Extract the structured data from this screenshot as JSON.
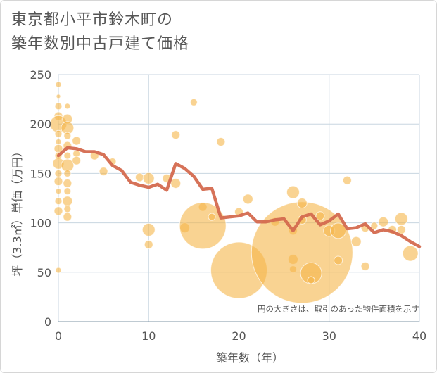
{
  "chart_data": {
    "type": "scatter",
    "title_line1": "東京都小平市鈴木町の",
    "title_line2": "築年数別中古戸建て価格",
    "xlabel": "築年数（年）",
    "ylabel": "坪（3.3㎡）単価（万円）",
    "xlim": [
      0,
      40
    ],
    "ylim": [
      0,
      250
    ],
    "xticks": [
      "0",
      "10",
      "20",
      "30",
      "40"
    ],
    "yticks": [
      "0",
      "50",
      "100",
      "150",
      "200",
      "250"
    ],
    "note": "円の大きさは、取引のあった物件面積を示す",
    "colors": {
      "bubble": "#f5b54a",
      "line": "#d46a4f",
      "grid": "#c8d6e0"
    },
    "average_line": {
      "x": [
        0,
        1,
        2,
        3,
        4,
        5,
        6,
        7,
        8,
        9,
        10,
        11,
        12,
        13,
        14,
        15,
        16,
        17,
        18,
        19,
        20,
        21,
        22,
        23,
        24,
        25,
        26,
        27,
        28,
        29,
        30,
        31,
        32,
        33,
        34,
        35,
        36,
        37,
        38,
        39,
        40
      ],
      "y": [
        168,
        176,
        175,
        172,
        172,
        169,
        158,
        153,
        141,
        138,
        136,
        139,
        133,
        160,
        155,
        147,
        134,
        135,
        105,
        106,
        107,
        110,
        101,
        101,
        103,
        104,
        92,
        106,
        109,
        98,
        102,
        109,
        94,
        95,
        99,
        90,
        93,
        91,
        87,
        81,
        76
      ]
    },
    "bubbles": [
      {
        "x": 0,
        "y": 240,
        "s": 4
      },
      {
        "x": 0,
        "y": 228,
        "s": 3
      },
      {
        "x": 0,
        "y": 218,
        "s": 5
      },
      {
        "x": 0,
        "y": 208,
        "s": 6
      },
      {
        "x": 0,
        "y": 200,
        "s": 12
      },
      {
        "x": 0,
        "y": 190,
        "s": 5
      },
      {
        "x": 0,
        "y": 182,
        "s": 4
      },
      {
        "x": 0,
        "y": 175,
        "s": 6
      },
      {
        "x": 0,
        "y": 168,
        "s": 5
      },
      {
        "x": 0,
        "y": 160,
        "s": 8
      },
      {
        "x": 0,
        "y": 150,
        "s": 5
      },
      {
        "x": 0,
        "y": 142,
        "s": 6
      },
      {
        "x": 0,
        "y": 132,
        "s": 4
      },
      {
        "x": 0,
        "y": 122,
        "s": 5
      },
      {
        "x": 0,
        "y": 112,
        "s": 6
      },
      {
        "x": 0,
        "y": 52,
        "s": 4
      },
      {
        "x": 1,
        "y": 218,
        "s": 4
      },
      {
        "x": 1,
        "y": 205,
        "s": 7
      },
      {
        "x": 1,
        "y": 196,
        "s": 9
      },
      {
        "x": 1,
        "y": 188,
        "s": 5
      },
      {
        "x": 1,
        "y": 178,
        "s": 6
      },
      {
        "x": 1,
        "y": 168,
        "s": 5
      },
      {
        "x": 1,
        "y": 158,
        "s": 9
      },
      {
        "x": 1,
        "y": 150,
        "s": 5
      },
      {
        "x": 1,
        "y": 140,
        "s": 6
      },
      {
        "x": 1,
        "y": 132,
        "s": 5
      },
      {
        "x": 1,
        "y": 122,
        "s": 7
      },
      {
        "x": 1,
        "y": 114,
        "s": 5
      },
      {
        "x": 1,
        "y": 106,
        "s": 6
      },
      {
        "x": 2,
        "y": 183,
        "s": 6
      },
      {
        "x": 2,
        "y": 170,
        "s": 5
      },
      {
        "x": 2,
        "y": 163,
        "s": 6
      },
      {
        "x": 4,
        "y": 168,
        "s": 6
      },
      {
        "x": 5,
        "y": 152,
        "s": 6
      },
      {
        "x": 6,
        "y": 162,
        "s": 5
      },
      {
        "x": 9,
        "y": 146,
        "s": 6
      },
      {
        "x": 10,
        "y": 145,
        "s": 8
      },
      {
        "x": 10,
        "y": 93,
        "s": 9
      },
      {
        "x": 10,
        "y": 78,
        "s": 6
      },
      {
        "x": 12,
        "y": 145,
        "s": 6
      },
      {
        "x": 13,
        "y": 189,
        "s": 6
      },
      {
        "x": 13,
        "y": 140,
        "s": 7
      },
      {
        "x": 14,
        "y": 95,
        "s": 7
      },
      {
        "x": 15,
        "y": 222,
        "s": 5
      },
      {
        "x": 16,
        "y": 116,
        "s": 6
      },
      {
        "x": 16,
        "y": 97,
        "s": 33
      },
      {
        "x": 17,
        "y": 106,
        "s": 5
      },
      {
        "x": 18,
        "y": 182,
        "s": 6
      },
      {
        "x": 20,
        "y": 52,
        "s": 40
      },
      {
        "x": 20,
        "y": 111,
        "s": 6
      },
      {
        "x": 21,
        "y": 124,
        "s": 7
      },
      {
        "x": 24,
        "y": 101,
        "s": 6
      },
      {
        "x": 26,
        "y": 131,
        "s": 9
      },
      {
        "x": 26,
        "y": 92,
        "s": 6
      },
      {
        "x": 26,
        "y": 63,
        "s": 7
      },
      {
        "x": 26,
        "y": 53,
        "s": 5
      },
      {
        "x": 27,
        "y": 70,
        "s": 72
      },
      {
        "x": 27,
        "y": 120,
        "s": 7
      },
      {
        "x": 27,
        "y": 103,
        "s": 6
      },
      {
        "x": 28,
        "y": 49,
        "s": 15
      },
      {
        "x": 28,
        "y": 42,
        "s": 5
      },
      {
        "x": 29,
        "y": 107,
        "s": 6
      },
      {
        "x": 30,
        "y": 92,
        "s": 8
      },
      {
        "x": 31,
        "y": 92,
        "s": 11
      },
      {
        "x": 31,
        "y": 62,
        "s": 6
      },
      {
        "x": 32,
        "y": 143,
        "s": 6
      },
      {
        "x": 33,
        "y": 81,
        "s": 7
      },
      {
        "x": 34,
        "y": 95,
        "s": 6
      },
      {
        "x": 34,
        "y": 56,
        "s": 6
      },
      {
        "x": 35,
        "y": 97,
        "s": 5
      },
      {
        "x": 36,
        "y": 101,
        "s": 7
      },
      {
        "x": 37,
        "y": 93,
        "s": 6
      },
      {
        "x": 38,
        "y": 104,
        "s": 9
      },
      {
        "x": 38,
        "y": 93,
        "s": 6
      },
      {
        "x": 39,
        "y": 69,
        "s": 11
      }
    ]
  }
}
